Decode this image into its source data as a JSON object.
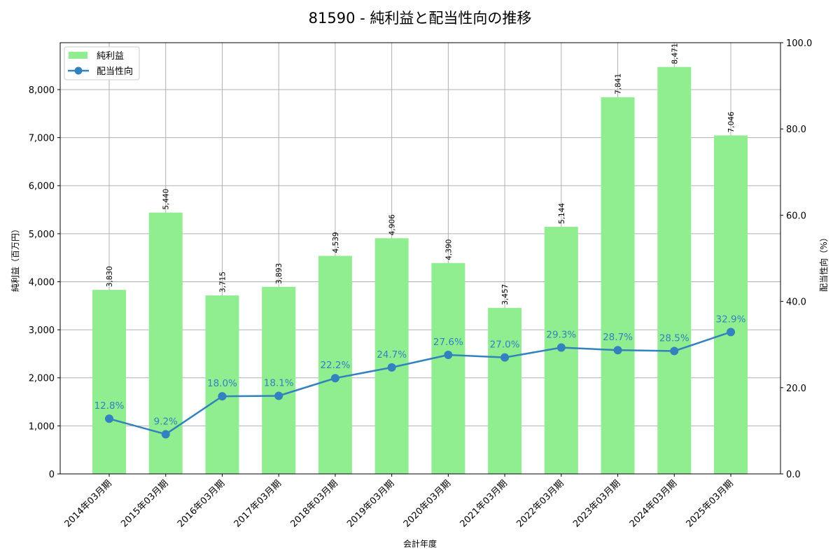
{
  "title": "81590 - 純利益と配当性向の推移",
  "legend": {
    "bar_label": "純利益",
    "line_label": "配当性向"
  },
  "axes": {
    "xlabel": "会計年度",
    "ylabel_left": "純利益（百万円）",
    "ylabel_right": "配当性向（%）",
    "left_ticks": [
      "0",
      "1,000",
      "2,000",
      "3,000",
      "4,000",
      "5,000",
      "6,000",
      "7,000",
      "8,000"
    ],
    "right_ticks": [
      "0.0",
      "20.0",
      "40.0",
      "60.0",
      "80.0",
      "100.0"
    ]
  },
  "colors": {
    "bar": "#90ee90",
    "line": "#3182bd",
    "grid": "#b0b0b0"
  },
  "chart_data": {
    "type": "bar+line",
    "title": "81590 - 純利益と配当性向の推移",
    "xlabel": "会計年度",
    "ylabel": "純利益（百万円）",
    "ylabel_secondary": "配当性向（%）",
    "ylim": [
      0,
      8976
    ],
    "ylim_secondary": [
      0,
      100
    ],
    "grid": true,
    "legend_position": "upper left",
    "categories": [
      "2014年03月期",
      "2015年03月期",
      "2016年03月期",
      "2017年03月期",
      "2018年03月期",
      "2019年03月期",
      "2020年03月期",
      "2021年03月期",
      "2022年03月期",
      "2023年03月期",
      "2024年03月期",
      "2025年03月期"
    ],
    "series": [
      {
        "name": "純利益",
        "type": "bar",
        "axis": "left",
        "values": [
          3830,
          5440,
          3715,
          3893,
          4539,
          4906,
          4390,
          3457,
          5144,
          7841,
          8471,
          7046
        ],
        "labels": [
          "3,830",
          "5,440",
          "3,715",
          "3,893",
          "4,539",
          "4,906",
          "4,390",
          "3,457",
          "5,144",
          "7,841",
          "8,471",
          "7,046"
        ]
      },
      {
        "name": "配当性向",
        "type": "line",
        "axis": "right",
        "values": [
          12.8,
          9.2,
          18.0,
          18.1,
          22.2,
          24.7,
          27.6,
          27.0,
          29.3,
          28.7,
          28.5,
          32.9
        ],
        "labels": [
          "12.8%",
          "9.2%",
          "18.0%",
          "18.1%",
          "22.2%",
          "24.7%",
          "27.6%",
          "27.0%",
          "29.3%",
          "28.7%",
          "28.5%",
          "32.9%"
        ]
      }
    ]
  }
}
